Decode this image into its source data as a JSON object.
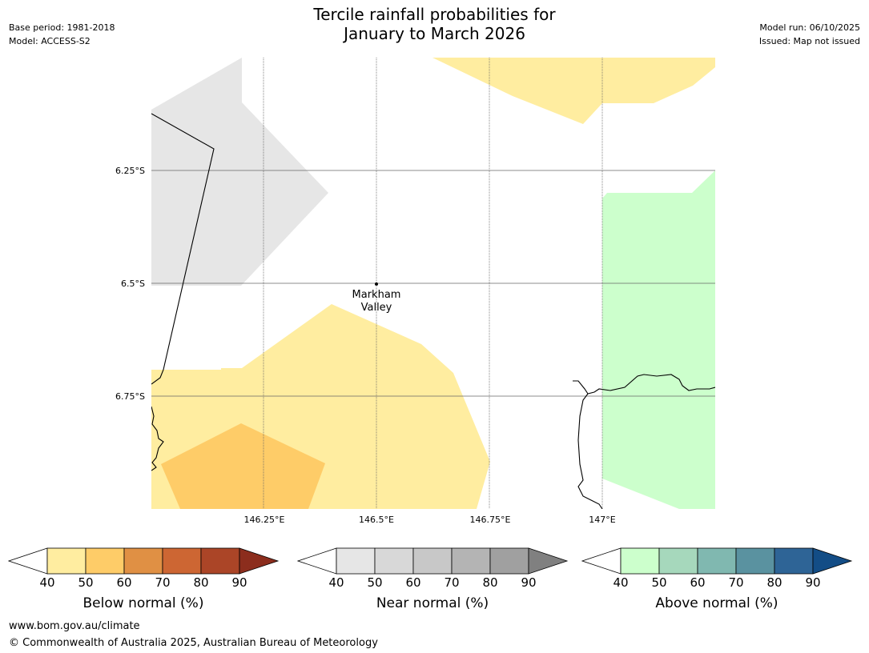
{
  "title_line1": "Tercile rainfall probabilities for",
  "title_line2": "January to March 2026",
  "base_period": "Base period: 1981-2018",
  "model": "Model: ACCESS-S2",
  "model_run": "Model run: 06/10/2025",
  "issued": "Issued: Map not issued",
  "map": {
    "lat_labels": [
      "6.25°S",
      "6.5°S",
      "6.75°S"
    ],
    "lon_labels": [
      "146.25°E",
      "146.5°E",
      "146.75°E",
      "147°E"
    ],
    "place_line1": "Markham",
    "place_line2": "Valley",
    "colors": {
      "below_40_50": "#ffeda0",
      "below_50_60": "#fecc68",
      "near_40_50": "#e6e6e6",
      "above_40_50": "#ccffcc"
    }
  },
  "colorbars": [
    {
      "label": "Below normal (%)",
      "ticks": [
        "40",
        "50",
        "60",
        "70",
        "80",
        "90"
      ],
      "colors": [
        "#ffeda0",
        "#fecc68",
        "#e09044",
        "#cd6633",
        "#ab4527"
      ],
      "over_color": "#8c2d1d"
    },
    {
      "label": "Near normal (%)",
      "ticks": [
        "40",
        "50",
        "60",
        "70",
        "80",
        "90"
      ],
      "colors": [
        "#e6e6e6",
        "#d8d8d8",
        "#c8c8c8",
        "#b4b4b4",
        "#a0a0a0"
      ],
      "over_color": "#808080"
    },
    {
      "label": "Above normal (%)",
      "ticks": [
        "40",
        "50",
        "60",
        "70",
        "80",
        "90"
      ],
      "colors": [
        "#ccffcc",
        "#a6d8bc",
        "#80b8b0",
        "#5a92a0",
        "#2e6496"
      ],
      "over_color": "#134d86"
    }
  ],
  "footer_url": "www.bom.gov.au/climate",
  "footer_copyright": "© Commonwealth of Australia 2025, Australian Bureau of Meteorology"
}
